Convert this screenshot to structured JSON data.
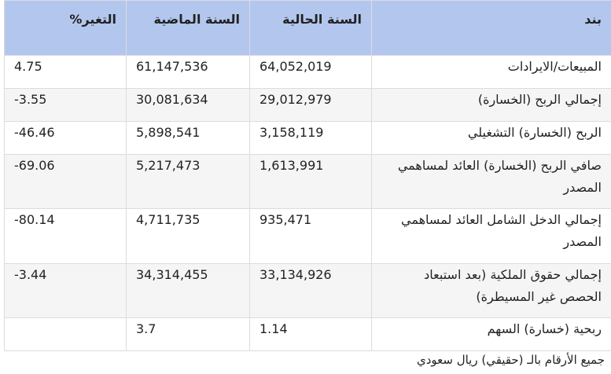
{
  "headers": {
    "item": "بند",
    "current": "السنة الحالية",
    "previous": "السنة الماضية",
    "change": "التغير%"
  },
  "rows": [
    {
      "item": "المبيعات/الايرادات",
      "current": "64,052,019",
      "previous": "61,147,536",
      "change": "4.75"
    },
    {
      "item": "إجمالي الربح (الخسارة)",
      "current": "29,012,979",
      "previous": "30,081,634",
      "change": "-3.55"
    },
    {
      "item": "الربح (الخسارة) التشغيلي",
      "current": "3,158,119",
      "previous": "5,898,541",
      "change": "-46.46"
    },
    {
      "item": "صافي الربح (الخسارة) العائد لمساهمي المصدر",
      "current": "1,613,991",
      "previous": "5,217,473",
      "change": "-69.06"
    },
    {
      "item": "إجمالي الدخل الشامل العائد لمساهمي المصدر",
      "current": "935,471",
      "previous": "4,711,735",
      "change": "-80.14"
    },
    {
      "item": "إجمالي حقوق الملكية (بعد استبعاد الحصص غير المسيطرة)",
      "current": "33,134,926",
      "previous": "34,314,455",
      "change": "-3.44"
    },
    {
      "item": "ربحية (خسارة) السهم",
      "current": "1.14",
      "previous": "3.7",
      "change": ""
    }
  ],
  "footnote": "جميع الأرقام بالـ (حقيقي) ريال سعودي",
  "colors": {
    "header_bg": "#b3c6ee",
    "positive_green": "#2fb335"
  }
}
